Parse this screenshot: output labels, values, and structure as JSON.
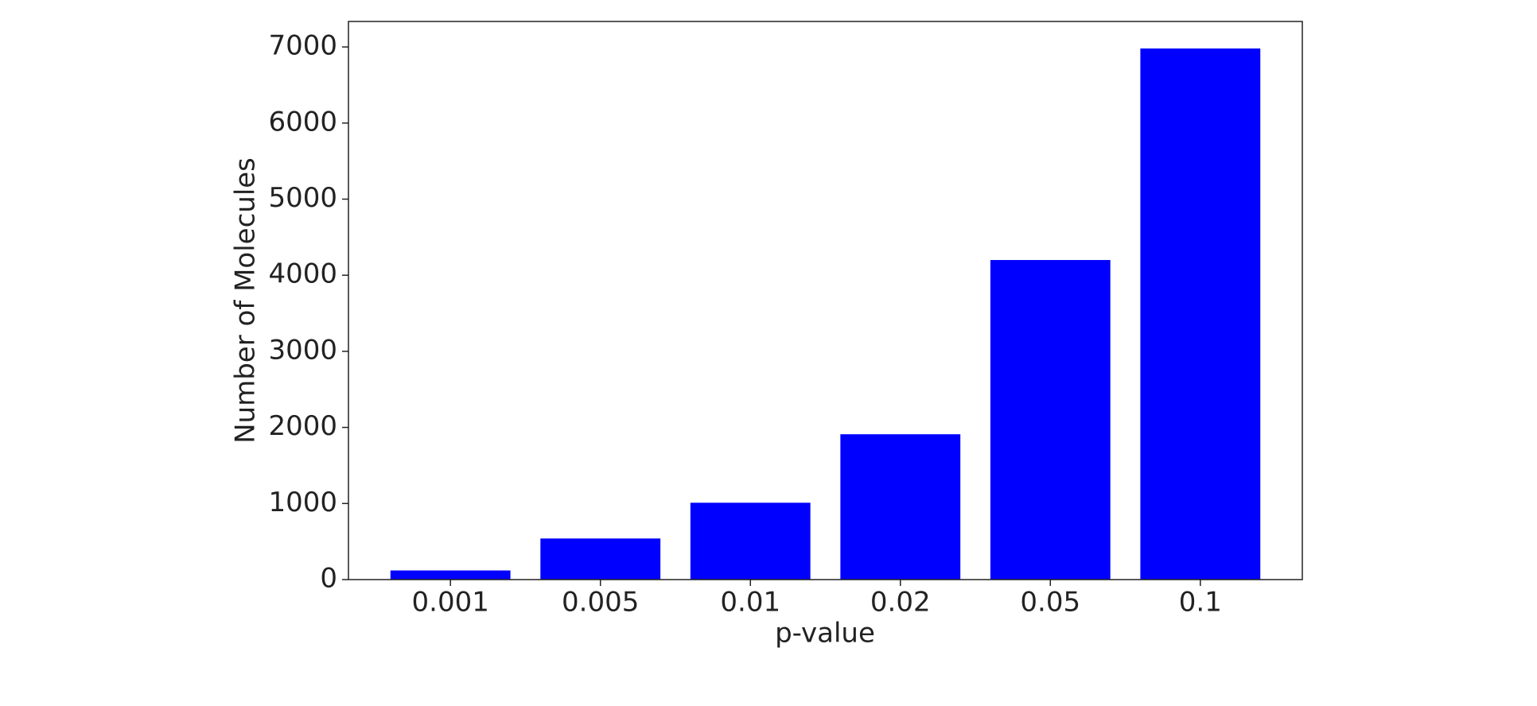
{
  "chart_data": {
    "type": "bar",
    "x_label": "p-value",
    "y_label": "Number of Molecules",
    "categories": [
      "0.001",
      "0.005",
      "0.01",
      "0.02",
      "0.05",
      "0.1"
    ],
    "values": [
      120,
      540,
      1010,
      1910,
      4200,
      6980
    ],
    "color": "#0000ff",
    "ylim": [
      0,
      7335
    ],
    "yticks": [
      0,
      1000,
      2000,
      3000,
      4000,
      5000,
      6000,
      7000
    ],
    "grid": false
  }
}
